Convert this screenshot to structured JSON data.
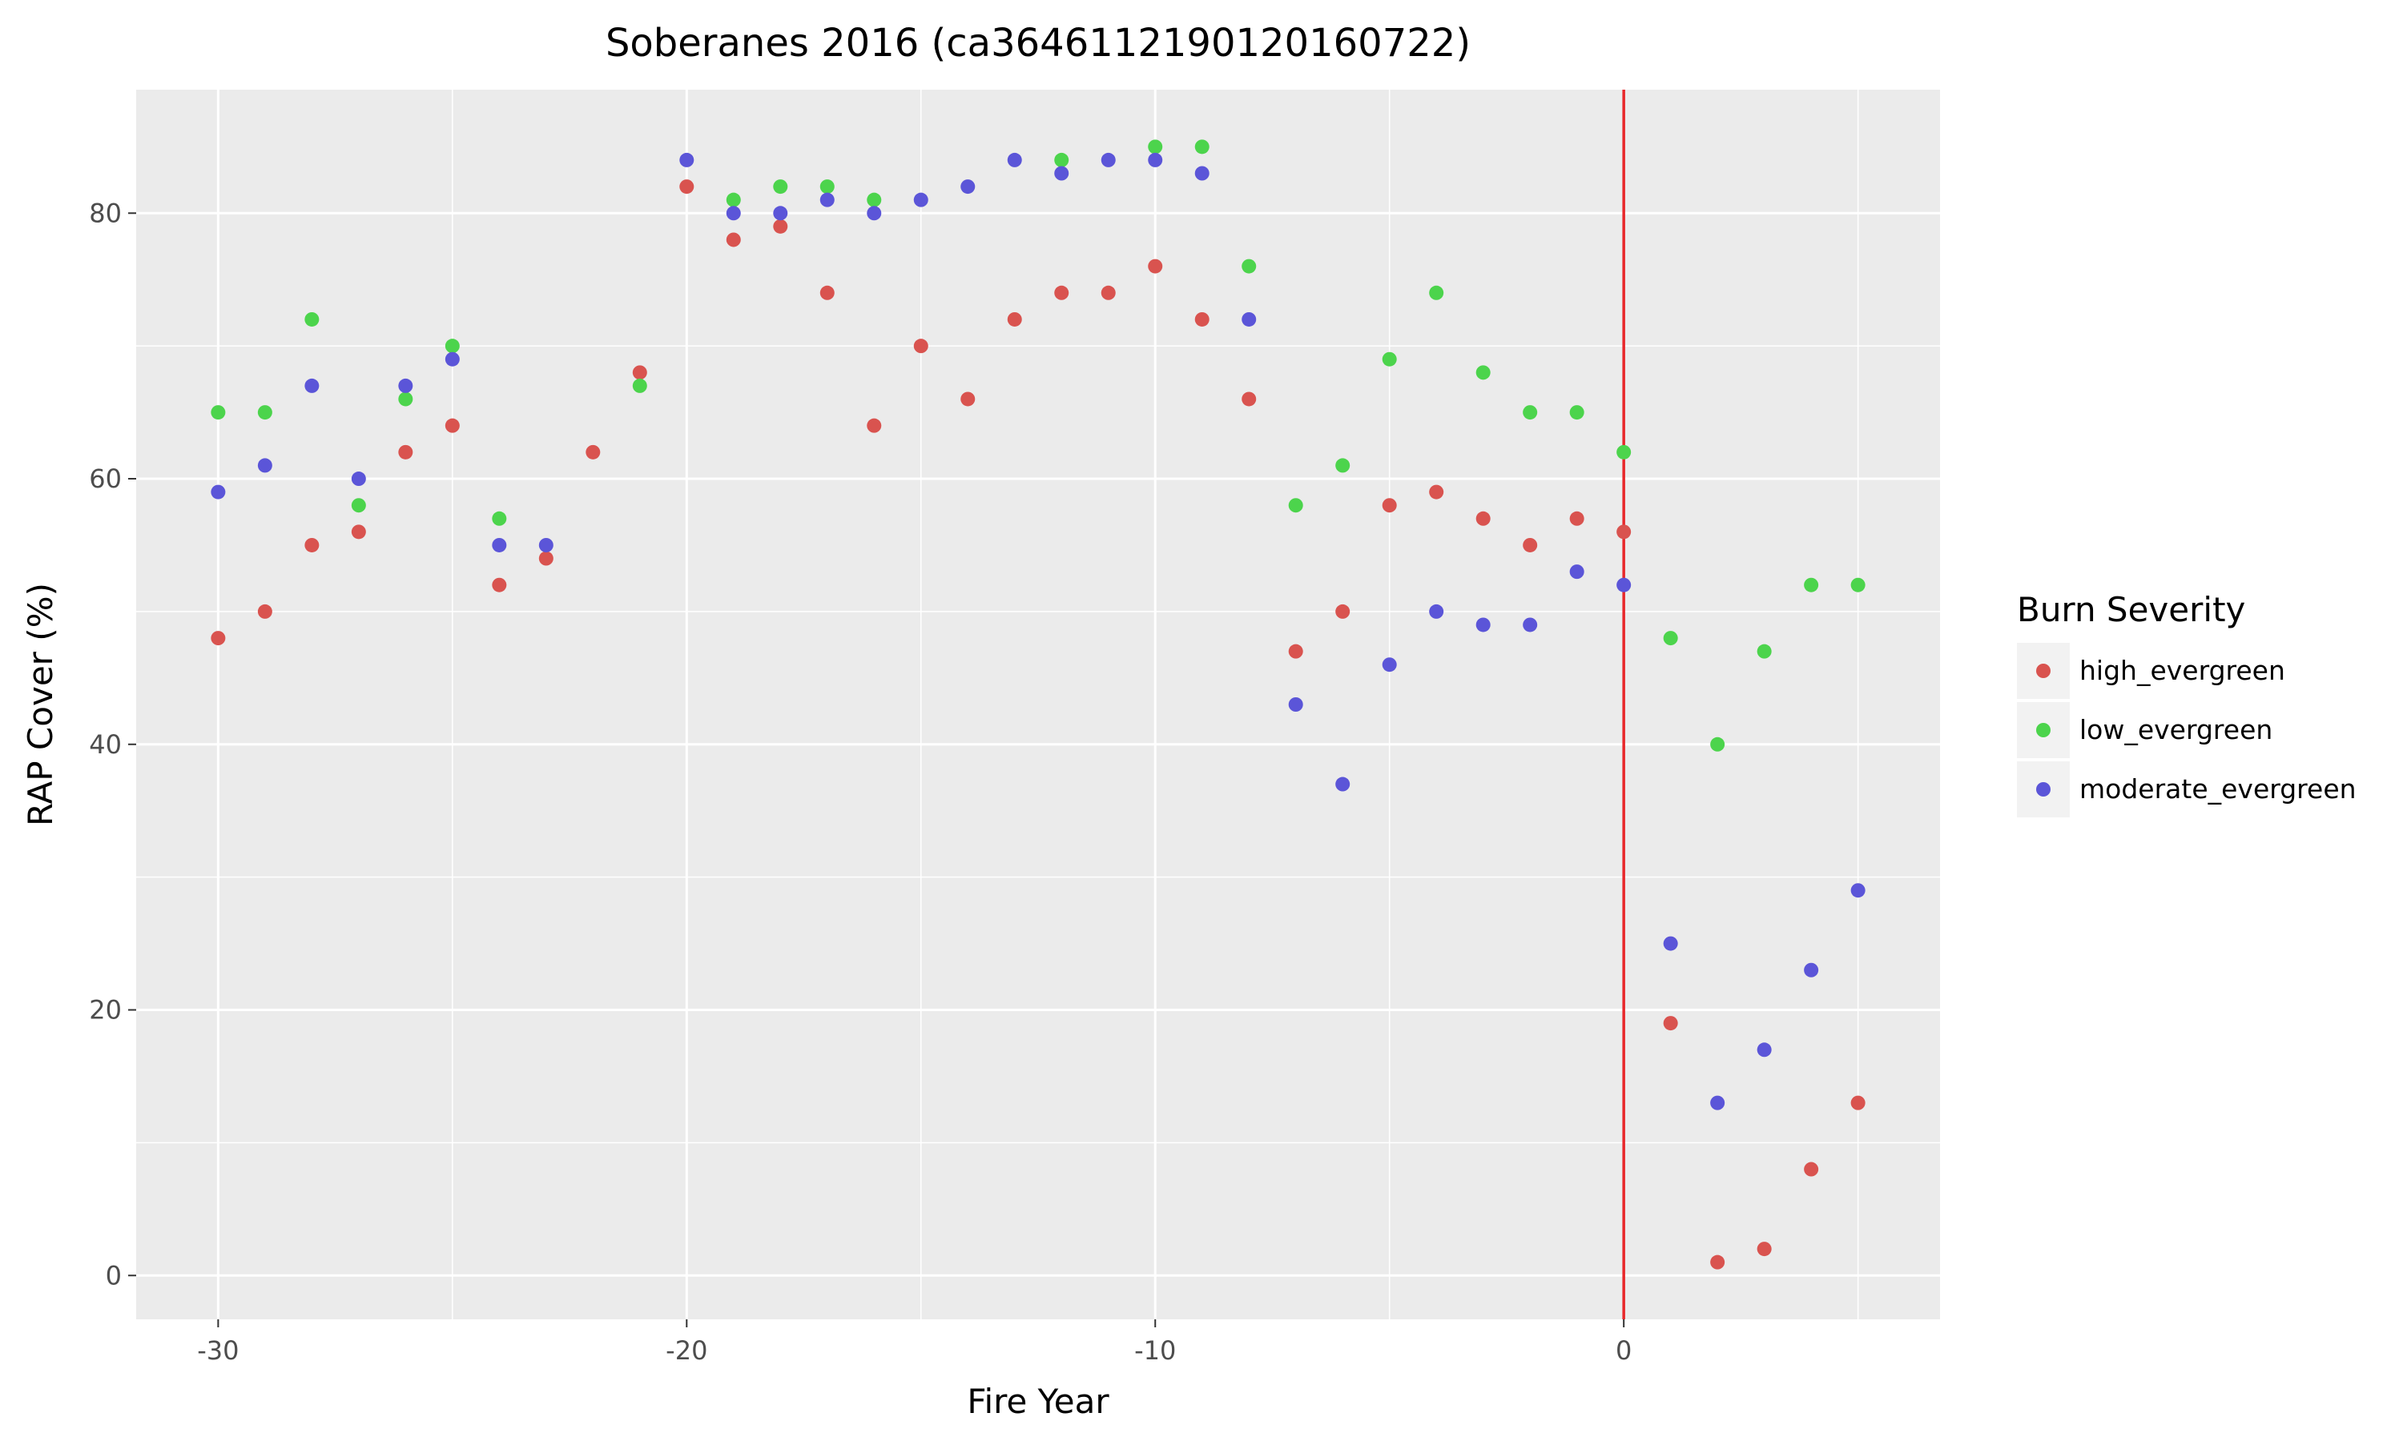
{
  "chart_data": {
    "type": "scatter",
    "title": "Soberanes 2016 (ca3646112190120160722)",
    "xlabel": "Fire Year",
    "ylabel": "RAP Cover (%)",
    "xlim": [
      -31.75,
      6.75
    ],
    "ylim": [
      -3.3,
      89.3
    ],
    "x_ticks": [
      -30,
      -20,
      -10,
      0
    ],
    "y_ticks": [
      0,
      20,
      40,
      60,
      80
    ],
    "grid": true,
    "vline": {
      "x": 0,
      "color": "#e8282b"
    },
    "legend": {
      "title": "Burn Severity",
      "placement": "right"
    },
    "series": [
      {
        "name": "high_evergreen",
        "color": "#d9534f",
        "points": [
          [
            -30,
            48
          ],
          [
            -29,
            50
          ],
          [
            -28,
            55
          ],
          [
            -27,
            56
          ],
          [
            -26,
            62
          ],
          [
            -25,
            64
          ],
          [
            -24,
            52
          ],
          [
            -23,
            54
          ],
          [
            -22,
            62
          ],
          [
            -21,
            68
          ],
          [
            -20,
            82
          ],
          [
            -19,
            78
          ],
          [
            -18,
            79
          ],
          [
            -17,
            74
          ],
          [
            -16,
            64
          ],
          [
            -15,
            70
          ],
          [
            -14,
            66
          ],
          [
            -13,
            72
          ],
          [
            -12,
            74
          ],
          [
            -11,
            74
          ],
          [
            -10,
            76
          ],
          [
            -9,
            72
          ],
          [
            -8,
            66
          ],
          [
            -7,
            47
          ],
          [
            -6,
            50
          ],
          [
            -5,
            58
          ],
          [
            -4,
            59
          ],
          [
            -3,
            57
          ],
          [
            -2,
            55
          ],
          [
            -1,
            57
          ],
          [
            0,
            56
          ],
          [
            1,
            19
          ],
          [
            2,
            1
          ],
          [
            3,
            2
          ],
          [
            4,
            8
          ],
          [
            5,
            13
          ]
        ]
      },
      {
        "name": "low_evergreen",
        "color": "#4cd44c",
        "points": [
          [
            -30,
            65
          ],
          [
            -29,
            65
          ],
          [
            -28,
            72
          ],
          [
            -27,
            58
          ],
          [
            -26,
            66
          ],
          [
            -25,
            70
          ],
          [
            -24,
            57
          ],
          [
            -21,
            67
          ],
          [
            -19,
            81
          ],
          [
            -18,
            82
          ],
          [
            -17,
            82
          ],
          [
            -16,
            81
          ],
          [
            -12,
            84
          ],
          [
            -10,
            85
          ],
          [
            -9,
            85
          ],
          [
            -8,
            76
          ],
          [
            -7,
            58
          ],
          [
            -6,
            61
          ],
          [
            -5,
            69
          ],
          [
            -4,
            74
          ],
          [
            -3,
            68
          ],
          [
            -2,
            65
          ],
          [
            -1,
            65
          ],
          [
            0,
            62
          ],
          [
            1,
            48
          ],
          [
            2,
            40
          ],
          [
            3,
            47
          ],
          [
            4,
            52
          ],
          [
            5,
            52
          ]
        ]
      },
      {
        "name": "moderate_evergreen",
        "color": "#5b55d8",
        "points": [
          [
            -30,
            59
          ],
          [
            -29,
            61
          ],
          [
            -28,
            67
          ],
          [
            -27,
            60
          ],
          [
            -26,
            67
          ],
          [
            -25,
            69
          ],
          [
            -24,
            55
          ],
          [
            -23,
            55
          ],
          [
            -20,
            84
          ],
          [
            -19,
            80
          ],
          [
            -18,
            80
          ],
          [
            -17,
            81
          ],
          [
            -16,
            80
          ],
          [
            -15,
            81
          ],
          [
            -14,
            82
          ],
          [
            -13,
            84
          ],
          [
            -12,
            83
          ],
          [
            -11,
            84
          ],
          [
            -10,
            84
          ],
          [
            -9,
            83
          ],
          [
            -8,
            72
          ],
          [
            -7,
            43
          ],
          [
            -6,
            37
          ],
          [
            -5,
            46
          ],
          [
            -4,
            50
          ],
          [
            -3,
            49
          ],
          [
            -2,
            49
          ],
          [
            -1,
            53
          ],
          [
            0,
            52
          ],
          [
            1,
            25
          ],
          [
            2,
            13
          ],
          [
            3,
            17
          ],
          [
            4,
            23
          ],
          [
            5,
            29
          ]
        ]
      }
    ]
  }
}
